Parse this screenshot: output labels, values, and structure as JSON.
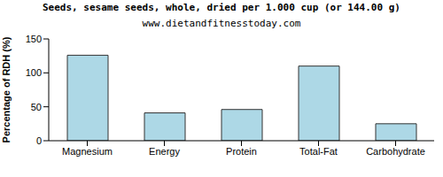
{
  "chart_data": {
    "type": "bar",
    "title": "Seeds, sesame seeds, whole, dried per 1.000 cup (or 144.00 g)",
    "subtitle": "www.dietandfitnesstoday.com",
    "y_label": "Percentage of RDH (%)",
    "categories": [
      "Magnesium",
      "Energy",
      "Protein",
      "Total-Fat",
      "Carbohydrate"
    ],
    "values": [
      126,
      41,
      46,
      110,
      25
    ],
    "color": "#add8e6",
    "ylim": [
      0,
      150
    ],
    "yticks": [
      0,
      50,
      100,
      150
    ],
    "grid": false
  }
}
